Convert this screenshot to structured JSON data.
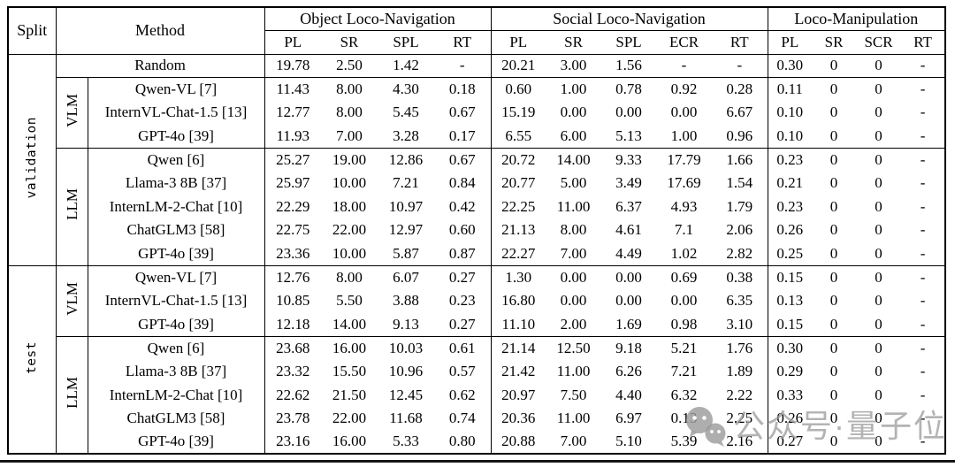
{
  "table": {
    "header": {
      "split": "Split",
      "method": "Method",
      "sections": [
        {
          "label": "Object Loco-Navigation",
          "cols": [
            "PL",
            "SR",
            "SPL",
            "RT"
          ]
        },
        {
          "label": "Social Loco-Navigation",
          "cols": [
            "PL",
            "SR",
            "SPL",
            "ECR",
            "RT"
          ]
        },
        {
          "label": "Loco-Manipulation",
          "cols": [
            "PL",
            "SR",
            "SCR",
            "RT"
          ]
        }
      ]
    },
    "splits": [
      {
        "label": "validation"
      },
      {
        "label": "test"
      }
    ],
    "groups": {
      "vlm": "VLM",
      "llm": "LLM"
    },
    "rows": [
      {
        "method": "Random",
        "v": [
          "19.78",
          "2.50",
          "1.42",
          "-",
          "20.21",
          "3.00",
          "1.56",
          "-",
          "-",
          "0.30",
          "0",
          "0",
          "-"
        ]
      },
      {
        "method": "Qwen-VL [7]",
        "v": [
          "11.43",
          "8.00",
          "4.30",
          "0.18",
          "0.60",
          "1.00",
          "0.78",
          "0.92",
          "0.28",
          "0.11",
          "0",
          "0",
          "-"
        ]
      },
      {
        "method": "InternVL-Chat-1.5 [13]",
        "v": [
          "12.77",
          "8.00",
          "5.45",
          "0.67",
          "15.19",
          "0.00",
          "0.00",
          "0.00",
          "6.67",
          "0.10",
          "0",
          "0",
          "-"
        ]
      },
      {
        "method": "GPT-4o [39]",
        "v": [
          "11.93",
          "7.00",
          "3.28",
          "0.17",
          "6.55",
          "6.00",
          "5.13",
          "1.00",
          "0.96",
          "0.10",
          "0",
          "0",
          "-"
        ]
      },
      {
        "method": "Qwen [6]",
        "v": [
          "25.27",
          "19.00",
          "12.86",
          "0.67",
          "20.72",
          "14.00",
          "9.33",
          "17.79",
          "1.66",
          "0.23",
          "0",
          "0",
          "-"
        ]
      },
      {
        "method": "Llama-3 8B [37]",
        "v": [
          "25.97",
          "10.00",
          "7.21",
          "0.84",
          "20.77",
          "5.00",
          "3.49",
          "17.69",
          "1.54",
          "0.21",
          "0",
          "0",
          "-"
        ]
      },
      {
        "method": "InternLM-2-Chat [10]",
        "v": [
          "22.29",
          "18.00",
          "10.97",
          "0.42",
          "22.25",
          "11.00",
          "6.37",
          "4.93",
          "1.79",
          "0.23",
          "0",
          "0",
          "-"
        ]
      },
      {
        "method": "ChatGLM3 [58]",
        "v": [
          "22.75",
          "22.00",
          "12.97",
          "0.60",
          "21.13",
          "8.00",
          "4.61",
          "7.1",
          "2.06",
          "0.26",
          "0",
          "0",
          "-"
        ]
      },
      {
        "method": "GPT-4o [39]",
        "v": [
          "23.36",
          "10.00",
          "5.87",
          "0.87",
          "22.27",
          "7.00",
          "4.49",
          "1.02",
          "2.82",
          "0.25",
          "0",
          "0",
          "-"
        ]
      },
      {
        "method": "Qwen-VL [7]",
        "v": [
          "12.76",
          "8.00",
          "6.07",
          "0.27",
          "1.30",
          "0.00",
          "0.00",
          "0.69",
          "0.38",
          "0.15",
          "0",
          "0",
          "-"
        ]
      },
      {
        "method": "InternVL-Chat-1.5 [13]",
        "v": [
          "10.85",
          "5.50",
          "3.88",
          "0.23",
          "16.80",
          "0.00",
          "0.00",
          "0.00",
          "6.35",
          "0.13",
          "0",
          "0",
          "-"
        ]
      },
      {
        "method": "GPT-4o [39]",
        "v": [
          "12.18",
          "14.00",
          "9.13",
          "0.27",
          "11.10",
          "2.00",
          "1.69",
          "0.98",
          "3.10",
          "0.15",
          "0",
          "0",
          "-"
        ]
      },
      {
        "method": "Qwen [6]",
        "v": [
          "23.68",
          "16.00",
          "10.03",
          "0.61",
          "21.14",
          "12.50",
          "9.18",
          "5.21",
          "1.76",
          "0.30",
          "0",
          "0",
          "-"
        ]
      },
      {
        "method": "Llama-3 8B [37]",
        "v": [
          "23.32",
          "15.50",
          "10.96",
          "0.57",
          "21.42",
          "11.00",
          "6.26",
          "7.21",
          "1.89",
          "0.29",
          "0",
          "0",
          "-"
        ]
      },
      {
        "method": "InternLM-2-Chat [10]",
        "v": [
          "22.62",
          "21.50",
          "12.45",
          "0.62",
          "20.97",
          "7.50",
          "4.40",
          "6.32",
          "2.22",
          "0.33",
          "0",
          "0",
          "-"
        ]
      },
      {
        "method": "ChatGLM3 [58]",
        "v": [
          "23.78",
          "22.00",
          "11.68",
          "0.74",
          "20.36",
          "11.00",
          "6.97",
          "0.13",
          "2.25",
          "0.26",
          "0",
          "0",
          "-"
        ]
      },
      {
        "method": "GPT-4o [39]",
        "v": [
          "23.16",
          "16.00",
          "5.33",
          "0.80",
          "20.88",
          "7.00",
          "5.10",
          "5.39",
          "2.16",
          "0.27",
          "0",
          "0",
          "-"
        ]
      }
    ]
  },
  "watermark": {
    "icon": "wechat-icon",
    "text": "公众号·量子位",
    "color": "#9a9a9a"
  }
}
